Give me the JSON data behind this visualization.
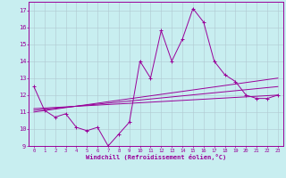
{
  "title": "",
  "xlabel": "Windchill (Refroidissement éolien,°C)",
  "ylabel": "",
  "bg_color": "#c8eef0",
  "line_color": "#990099",
  "grid_color": "#b0c8d0",
  "xlim": [
    -0.5,
    23.5
  ],
  "ylim": [
    9,
    17.5
  ],
  "yticks": [
    9,
    10,
    11,
    12,
    13,
    14,
    15,
    16,
    17
  ],
  "xticks": [
    0,
    1,
    2,
    3,
    4,
    5,
    6,
    7,
    8,
    9,
    10,
    11,
    12,
    13,
    14,
    15,
    16,
    17,
    18,
    19,
    20,
    21,
    22,
    23
  ],
  "line1_x": [
    0,
    1,
    2,
    3,
    4,
    5,
    6,
    7,
    8,
    9,
    10,
    11,
    12,
    13,
    14,
    15,
    16,
    17,
    18,
    19,
    20,
    21,
    22,
    23
  ],
  "line1_y": [
    12.5,
    11.1,
    10.7,
    10.9,
    10.1,
    9.9,
    10.1,
    9.0,
    9.7,
    10.4,
    14.0,
    13.0,
    15.8,
    14.0,
    15.3,
    17.1,
    16.3,
    14.0,
    13.2,
    12.8,
    12.0,
    11.8,
    11.8,
    12.0
  ],
  "line2_x": [
    0,
    23
  ],
  "line2_y": [
    11.0,
    13.0
  ],
  "line3_x": [
    0,
    23
  ],
  "line3_y": [
    11.1,
    12.5
  ],
  "line4_x": [
    0,
    23
  ],
  "line4_y": [
    11.2,
    12.0
  ]
}
